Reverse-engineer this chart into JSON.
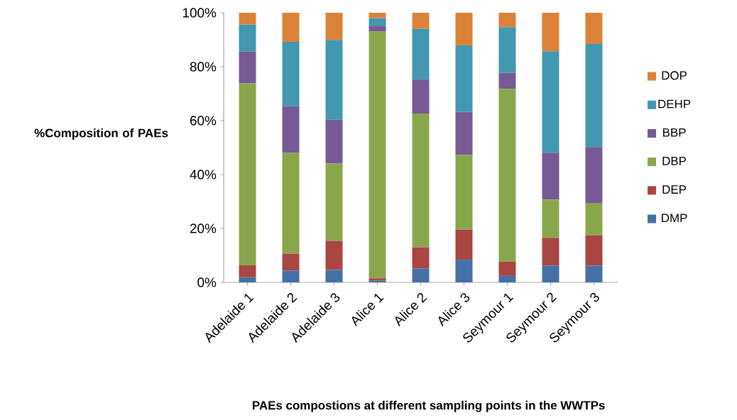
{
  "chart_data": {
    "type": "bar",
    "stacked": true,
    "xlabel": "PAEs compostions at different sampling points in the WWTPs",
    "ylabel": "%Composition of PAEs",
    "categories": [
      "Adelaide 1",
      "Adelaide 2",
      "Adelaide 3",
      "Alice 1",
      "Alice 2",
      "Alice 3",
      "Seymour 1",
      "Seymour 2",
      "Seymour 3"
    ],
    "series": [
      {
        "name": "DMP",
        "color": "#4470a6",
        "values": [
          1.9,
          4.4,
          4.6,
          0.6,
          5.1,
          8.4,
          2.4,
          6.2,
          6.2
        ]
      },
      {
        "name": "DEP",
        "color": "#a94542",
        "values": [
          4.4,
          6.2,
          10.8,
          0.9,
          7.9,
          11.2,
          5.3,
          10.3,
          11.2
        ]
      },
      {
        "name": "DBP",
        "color": "#8aa64b",
        "values": [
          67.5,
          37.4,
          28.7,
          91.5,
          49.6,
          27.7,
          64.1,
          14.2,
          11.9
        ]
      },
      {
        "name": "BBP",
        "color": "#765a95",
        "values": [
          11.8,
          17.4,
          16.2,
          2.0,
          12.7,
          16.0,
          5.9,
          17.4,
          20.9
        ]
      },
      {
        "name": "DEHP",
        "color": "#4198b0",
        "values": [
          10.0,
          23.8,
          29.6,
          3.0,
          18.7,
          24.6,
          17.0,
          37.6,
          38.2
        ]
      },
      {
        "name": "DOP",
        "color": "#dc8238",
        "values": [
          4.4,
          10.8,
          10.1,
          2.0,
          6.0,
          12.1,
          5.3,
          14.3,
          11.6
        ]
      }
    ],
    "ylim": [
      0,
      100
    ],
    "yticks": [
      {
        "value": 0,
        "label": "0%"
      },
      {
        "value": 20,
        "label": "20%"
      },
      {
        "value": 40,
        "label": "40%"
      },
      {
        "value": 60,
        "label": "60%"
      },
      {
        "value": 80,
        "label": "80%"
      },
      {
        "value": 100,
        "label": "100%"
      }
    ],
    "legend": "right",
    "grid": false
  }
}
